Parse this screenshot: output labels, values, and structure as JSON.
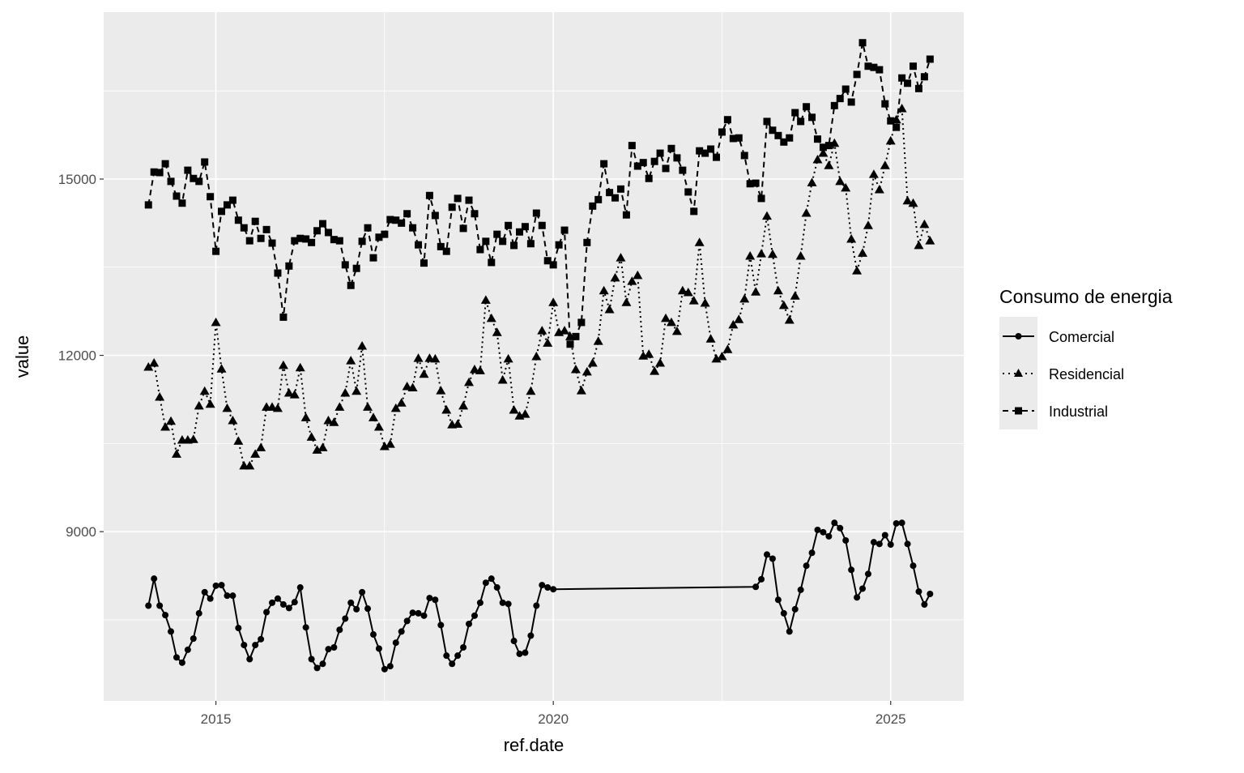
{
  "chart_data": {
    "type": "line",
    "title": "",
    "xlabel": "ref.date",
    "ylabel": "value",
    "xlim": [
      "2013-06",
      "2026-02"
    ],
    "ylim": [
      6120,
      17840
    ],
    "grid": true,
    "x_ticks": [
      {
        "value": 2015,
        "label": "2015"
      },
      {
        "value": 2020,
        "label": "2020"
      },
      {
        "value": 2025,
        "label": "2025"
      }
    ],
    "y_ticks": [
      {
        "value": 9000,
        "label": "9000"
      },
      {
        "value": 12000,
        "label": "12000"
      },
      {
        "value": 15000,
        "label": "15000"
      }
    ],
    "legend": {
      "title": "Consumo de energia",
      "placement": "right"
    },
    "x": [
      "2014-01",
      "2014-02",
      "2014-03",
      "2014-04",
      "2014-05",
      "2014-06",
      "2014-07",
      "2014-08",
      "2014-09",
      "2014-10",
      "2014-11",
      "2014-12",
      "2015-01",
      "2015-02",
      "2015-03",
      "2015-04",
      "2015-05",
      "2015-06",
      "2015-07",
      "2015-08",
      "2015-09",
      "2015-10",
      "2015-11",
      "2015-12",
      "2016-01",
      "2016-02",
      "2016-03",
      "2016-04",
      "2016-05",
      "2016-06",
      "2016-07",
      "2016-08",
      "2016-09",
      "2016-10",
      "2016-11",
      "2016-12",
      "2017-01",
      "2017-02",
      "2017-03",
      "2017-04",
      "2017-05",
      "2017-06",
      "2017-07",
      "2017-08",
      "2017-09",
      "2017-10",
      "2017-11",
      "2017-12",
      "2018-01",
      "2018-02",
      "2018-03",
      "2018-04",
      "2018-05",
      "2018-06",
      "2018-07",
      "2018-08",
      "2018-09",
      "2018-10",
      "2018-11",
      "2018-12",
      "2019-01",
      "2019-02",
      "2019-03",
      "2019-04",
      "2019-05",
      "2019-06",
      "2019-07",
      "2019-08",
      "2019-09",
      "2019-10",
      "2019-11",
      "2019-12",
      "2020-01",
      "2020-02",
      "2020-03",
      "2020-04",
      "2020-05",
      "2020-06",
      "2020-07",
      "2020-08",
      "2020-09",
      "2020-10",
      "2020-11",
      "2020-12",
      "2021-01",
      "2021-02",
      "2021-03",
      "2021-04",
      "2021-05",
      "2021-06",
      "2021-07",
      "2021-08",
      "2021-09",
      "2021-10",
      "2021-11",
      "2021-12",
      "2022-01",
      "2022-02",
      "2022-03",
      "2022-04",
      "2022-05",
      "2022-06",
      "2022-07",
      "2022-08",
      "2022-09",
      "2022-10",
      "2022-11",
      "2022-12",
      "2023-01",
      "2023-02",
      "2023-03",
      "2023-04",
      "2023-05",
      "2023-06",
      "2023-07",
      "2023-08",
      "2023-09",
      "2023-10",
      "2023-11",
      "2023-12",
      "2024-01",
      "2024-02",
      "2024-03",
      "2024-04",
      "2024-05",
      "2024-06",
      "2024-07",
      "2024-08",
      "2024-09",
      "2024-10",
      "2024-11",
      "2024-12",
      "2025-01",
      "2025-02",
      "2025-03",
      "2025-04",
      "2025-05",
      "2025-06",
      "2025-07",
      "2025-08"
    ],
    "series": [
      {
        "name": "Comercial",
        "line": "solid",
        "marker": "circle",
        "values": [
          7740,
          8200,
          7740,
          7580,
          7300,
          6860,
          6770,
          6990,
          7180,
          7610,
          7970,
          7860,
          8080,
          8090,
          7910,
          7910,
          7360,
          7070,
          6830,
          7070,
          7170,
          7630,
          7790,
          7860,
          7760,
          7700,
          7800,
          8050,
          7370,
          6830,
          6680,
          6750,
          7000,
          7030,
          7330,
          7520,
          7790,
          7680,
          7970,
          7690,
          7250,
          7010,
          6660,
          6710,
          7110,
          7300,
          7480,
          7620,
          7610,
          7570,
          7870,
          7840,
          7410,
          6890,
          6750,
          6890,
          7030,
          7430,
          7570,
          7790,
          8130,
          8200,
          8050,
          7790,
          7770,
          7140,
          6920,
          6940,
          7230,
          7740,
          8090,
          8050,
          8020,
          null,
          null,
          null,
          null,
          null,
          null,
          null,
          null,
          null,
          null,
          null,
          null,
          null,
          null,
          null,
          null,
          null,
          null,
          null,
          null,
          null,
          null,
          null,
          null,
          null,
          null,
          null,
          null,
          null,
          null,
          null,
          null,
          null,
          null,
          null,
          8060,
          8190,
          8610,
          8540,
          7840,
          7610,
          7300,
          7680,
          8010,
          8420,
          8640,
          9030,
          8990,
          8920,
          9150,
          9060,
          8850,
          8350,
          7880,
          8030,
          8280,
          8820,
          8790,
          8940,
          8780,
          9140,
          9150,
          8790,
          8420,
          7980,
          7760,
          7940
        ]
      },
      {
        "name": "Residencial",
        "line": "dotted",
        "marker": "triangle",
        "values": [
          11800,
          11870,
          11290,
          10780,
          10880,
          10320,
          10560,
          10560,
          10570,
          11140,
          11390,
          11170,
          12560,
          11770,
          11100,
          10890,
          10540,
          10120,
          10120,
          10320,
          10430,
          11120,
          11120,
          11100,
          11830,
          11360,
          11330,
          11790,
          10940,
          10610,
          10390,
          10430,
          10890,
          10860,
          11120,
          11360,
          11910,
          11390,
          12160,
          11120,
          10940,
          10780,
          10450,
          10490,
          11100,
          11190,
          11470,
          11450,
          11950,
          11680,
          11950,
          11940,
          11400,
          11070,
          10820,
          10830,
          11140,
          11540,
          11760,
          11740,
          12940,
          12630,
          12390,
          11580,
          11940,
          11070,
          10970,
          11000,
          11390,
          11980,
          12420,
          12210,
          12900,
          12390,
          12420,
          12320,
          11760,
          11400,
          11720,
          11870,
          12240,
          13100,
          12780,
          13320,
          13660,
          12900,
          13260,
          13360,
          11990,
          12020,
          11730,
          11870,
          12630,
          12560,
          12410,
          13100,
          13070,
          12930,
          13920,
          12890,
          12280,
          11940,
          11980,
          12100,
          12520,
          12610,
          12960,
          13690,
          13080,
          13730,
          14370,
          13720,
          13100,
          12850,
          12600,
          13010,
          13690,
          14420,
          14940,
          15330,
          15440,
          15230,
          15610,
          14960,
          14850,
          13980,
          13440,
          13740,
          14210,
          15080,
          14820,
          15230,
          15650,
          16010,
          16200,
          14630,
          14590,
          13870,
          14230,
          13950
        ]
      },
      {
        "name": "Industrial",
        "line": "dashed",
        "marker": "square",
        "values": [
          14560,
          15120,
          15110,
          15260,
          14960,
          14710,
          14590,
          15150,
          15010,
          14960,
          15290,
          14700,
          13770,
          14450,
          14560,
          14640,
          14300,
          14170,
          13950,
          14280,
          13990,
          14140,
          13910,
          13400,
          12650,
          13520,
          13950,
          13990,
          13980,
          13920,
          14120,
          14240,
          14090,
          13970,
          13950,
          13540,
          13190,
          13480,
          13940,
          14170,
          13660,
          14010,
          14060,
          14310,
          14300,
          14250,
          14410,
          14170,
          13880,
          13570,
          14720,
          14380,
          13850,
          13770,
          14520,
          14670,
          14160,
          14640,
          14410,
          13800,
          13940,
          13580,
          14060,
          13940,
          14210,
          13870,
          14100,
          14190,
          13900,
          14420,
          14210,
          13610,
          13540,
          13880,
          14130,
          12190,
          12320,
          12560,
          13920,
          14540,
          14650,
          15260,
          14770,
          14680,
          14830,
          14390,
          15570,
          15220,
          15280,
          15010,
          15300,
          15440,
          15180,
          15520,
          15360,
          15150,
          14780,
          14450,
          15480,
          15440,
          15510,
          15370,
          15800,
          16010,
          15690,
          15700,
          15400,
          14920,
          14930,
          14670,
          15980,
          15830,
          15740,
          15630,
          15700,
          16130,
          15980,
          16230,
          16050,
          15680,
          15540,
          15570,
          16250,
          16370,
          16530,
          16310,
          16780,
          17320,
          16920,
          16900,
          16860,
          16280,
          15990,
          15880,
          16720,
          16630,
          16920,
          16540,
          16740,
          17040
        ]
      }
    ],
    "colors": {
      "panel": "#ebebeb",
      "grid": "#ffffff",
      "series": "#000000",
      "tick_text": "#4d4d4d",
      "legend_key": "#ebebeb"
    }
  }
}
